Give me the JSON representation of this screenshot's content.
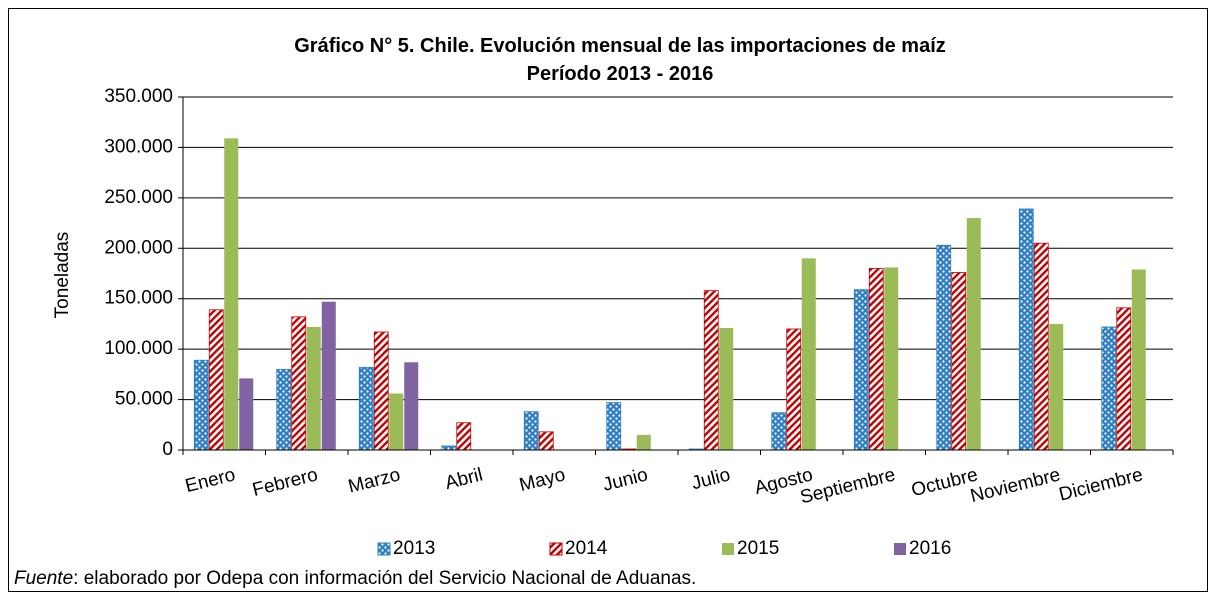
{
  "chart_data": {
    "type": "bar",
    "title": "Gráfico N° 5. Chile. Evolución mensual de las importaciones de maíz",
    "subtitle": "Período  2013 - 2016",
    "y_label": "Toneladas",
    "categories": [
      "Enero",
      "Febrero",
      "Marzo",
      "Abril",
      "Mayo",
      "Junio",
      "Julio",
      "Agosto",
      "Septiembre",
      "Octubre",
      "Noviembre",
      "Diciembre"
    ],
    "series": [
      {
        "name": "2013",
        "color": "#2f7fc0",
        "pattern": "check",
        "values": [
          89000,
          80000,
          82000,
          4000,
          38000,
          47000,
          1000,
          37000,
          159000,
          203000,
          239000,
          122000
        ]
      },
      {
        "name": "2014",
        "color": "#c00000",
        "pattern": "hatch",
        "values": [
          139000,
          132000,
          117000,
          27000,
          18000,
          1000,
          158000,
          120000,
          180000,
          176000,
          205000,
          141000
        ]
      },
      {
        "name": "2015",
        "color": "#9bbb59",
        "pattern": "solid",
        "values": [
          309000,
          122000,
          56000,
          0,
          0,
          15000,
          121000,
          190000,
          181000,
          230000,
          125000,
          179000
        ]
      },
      {
        "name": "2016",
        "color": "#8064a2",
        "pattern": "solid",
        "values": [
          71000,
          147000,
          87000,
          null,
          null,
          null,
          null,
          null,
          null,
          null,
          null,
          null
        ]
      }
    ],
    "ylim": [
      0,
      350000
    ],
    "yticks": [
      0,
      {
        "value": 50000,
        "label": "50.000"
      },
      {
        "value": 100000,
        "label": "100.000"
      },
      {
        "value": 150000,
        "label": "150.000"
      },
      {
        "value": 200000,
        "label": "200.000"
      },
      {
        "value": 250000,
        "label": "250.000"
      },
      {
        "value": 300000,
        "label": "300.000"
      },
      {
        "value": 350000,
        "label": "350.000"
      }
    ],
    "grid": true,
    "legend": "bottom",
    "source_label": "Fuente",
    "source_text": ": elaborado por Odepa con información del Servicio Nacional de Aduanas."
  }
}
